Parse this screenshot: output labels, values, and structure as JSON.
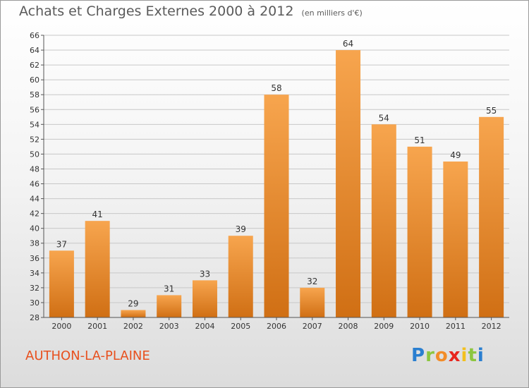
{
  "header": {
    "title": "Achats et Charges Externes 2000 à 2012",
    "unit": "(en milliers d'€)"
  },
  "footer": {
    "commune": "AUTHON-LA-PLAINE",
    "brand": [
      "P",
      "r",
      "o",
      "x",
      "i",
      "t",
      "i"
    ],
    "brand_colors": [
      "#2a7fd0",
      "#8cc63f",
      "#f28c28",
      "#e8261e",
      "#f2c01e",
      "#8cc63f",
      "#2a7fd0"
    ]
  },
  "colors": {
    "bar_top": "#f7a54e",
    "bar_bottom": "#d06f14",
    "grid": "#c8c8c8",
    "axis": "#555555",
    "text": "#333333",
    "commune": "#e8501e"
  },
  "chart_data": {
    "type": "bar",
    "categories": [
      "2000",
      "2001",
      "2002",
      "2003",
      "2004",
      "2005",
      "2006",
      "2007",
      "2008",
      "2009",
      "2010",
      "2011",
      "2012"
    ],
    "values": [
      37,
      41,
      29,
      31,
      33,
      39,
      58,
      32,
      64,
      54,
      51,
      49,
      55
    ],
    "title": "Achats et Charges Externes 2000 à 2012",
    "xlabel": "",
    "ylabel": "",
    "ylim": [
      28,
      66
    ],
    "ytick_step": 2,
    "grid": true,
    "data_labels": true
  }
}
